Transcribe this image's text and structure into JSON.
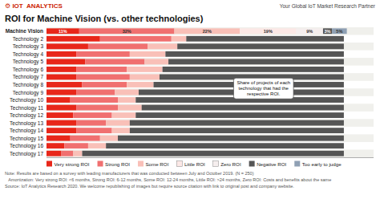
{
  "chart_data": {
    "type": "bar",
    "orientation": "horizontal",
    "stacked": true,
    "title": "ROI for Machine Vision (vs. other technologies)",
    "categories": [
      "Machine Vision",
      "Technology 2",
      "Technology 3",
      "Technology 4",
      "Technology 5",
      "Technology 6",
      "Technology 7",
      "Technology 8",
      "Technology 9",
      "Technology 10",
      "Technology 11",
      "Technology 12",
      "Technology 13",
      "Technology 14",
      "Technology 15",
      "Technology 16",
      "Technology 17"
    ],
    "series": [
      {
        "name": "Very strong ROI",
        "color": "#e8271a",
        "values": [
          11,
          18,
          14,
          10,
          13,
          10,
          10,
          12,
          10,
          8,
          10,
          9,
          10,
          10,
          8,
          6,
          5
        ],
        "value_labels": [
          "11%",
          null,
          null,
          null,
          null,
          null,
          null,
          null,
          null,
          null,
          null,
          null,
          null,
          null,
          null,
          null,
          null
        ]
      },
      {
        "name": "Strong ROI",
        "color": "#f07070",
        "values": [
          32,
          24,
          20,
          18,
          20,
          17,
          18,
          15,
          13,
          16,
          14,
          13,
          10,
          12,
          10,
          8,
          4
        ],
        "value_labels": [
          "32%",
          null,
          null,
          null,
          null,
          null,
          null,
          null,
          null,
          null,
          null,
          null,
          null,
          null,
          null,
          null,
          null
        ]
      },
      {
        "name": "Some ROI",
        "color": "#f9c0b8",
        "values": [
          22,
          5,
          10,
          12,
          8,
          12,
          10,
          9,
          8,
          6,
          8,
          8,
          8,
          6,
          6,
          6,
          3
        ],
        "value_labels": [
          "22%",
          null,
          null,
          null,
          null,
          null,
          null,
          null,
          null,
          null,
          null,
          null,
          null,
          null,
          null,
          null,
          null
        ]
      },
      {
        "name": "Little ROI",
        "color": "#fce8e6",
        "values": [
          19,
          0,
          0,
          0,
          0,
          0,
          0,
          0,
          0,
          0,
          0,
          0,
          0,
          0,
          0,
          0,
          0
        ],
        "value_labels": [
          "19%",
          null,
          null,
          null,
          null,
          null,
          null,
          null,
          null,
          null,
          null,
          null,
          null,
          null,
          null,
          null,
          null
        ]
      },
      {
        "name": "Zero ROI",
        "color": "#f5eeee",
        "values": [
          9,
          0,
          0,
          0,
          0,
          0,
          0,
          0,
          0,
          0,
          0,
          0,
          0,
          0,
          0,
          0,
          0
        ],
        "value_labels": [
          "9%",
          null,
          null,
          null,
          null,
          null,
          null,
          null,
          null,
          null,
          null,
          null,
          null,
          null,
          null,
          null,
          null
        ]
      },
      {
        "name": "Negative ROI",
        "color": "#555555",
        "values": [
          3,
          53,
          56,
          60,
          59,
          61,
          62,
          64,
          69,
          70,
          68,
          70,
          72,
          72,
          76,
          80,
          88
        ],
        "value_labels": [
          "3%",
          null,
          null,
          null,
          null,
          null,
          null,
          null,
          null,
          null,
          null,
          null,
          null,
          null,
          null,
          null,
          null
        ]
      },
      {
        "name": "Too early to judge",
        "color": "#8fa0b4",
        "values": [
          5,
          0,
          0,
          0,
          0,
          0,
          0,
          0,
          0,
          0,
          0,
          0,
          0,
          0,
          0,
          0,
          0
        ],
        "value_labels": [
          "5%",
          null,
          null,
          null,
          null,
          null,
          null,
          null,
          null,
          null,
          null,
          null,
          null,
          null,
          null,
          null,
          null
        ]
      }
    ],
    "xlim": [
      0,
      110
    ],
    "tick_labels": "y",
    "grid": false,
    "legend": "bottom",
    "data_labels": true,
    "annotations": [
      "⚙ IOT  ANALYTICS",
      "Your Global IoT Market Research Partner",
      "Share of projects of each\ntechnology that had the\nrespective ROI.",
      "Note: Results are based on a survey with leading manufacturers that was conducted between July and October 2019. (N = 250)",
      "   Amortization: Very strong ROI: <6 months, Strong ROI: 6-12 months, Some ROI: 12-24 months, Little ROI: >24 months, Zero ROI: Costs and benefits about the same",
      "Source: IoT Analytics Research 2020. We welcome republishing of images but require source citation with link to original post and company website."
    ]
  }
}
